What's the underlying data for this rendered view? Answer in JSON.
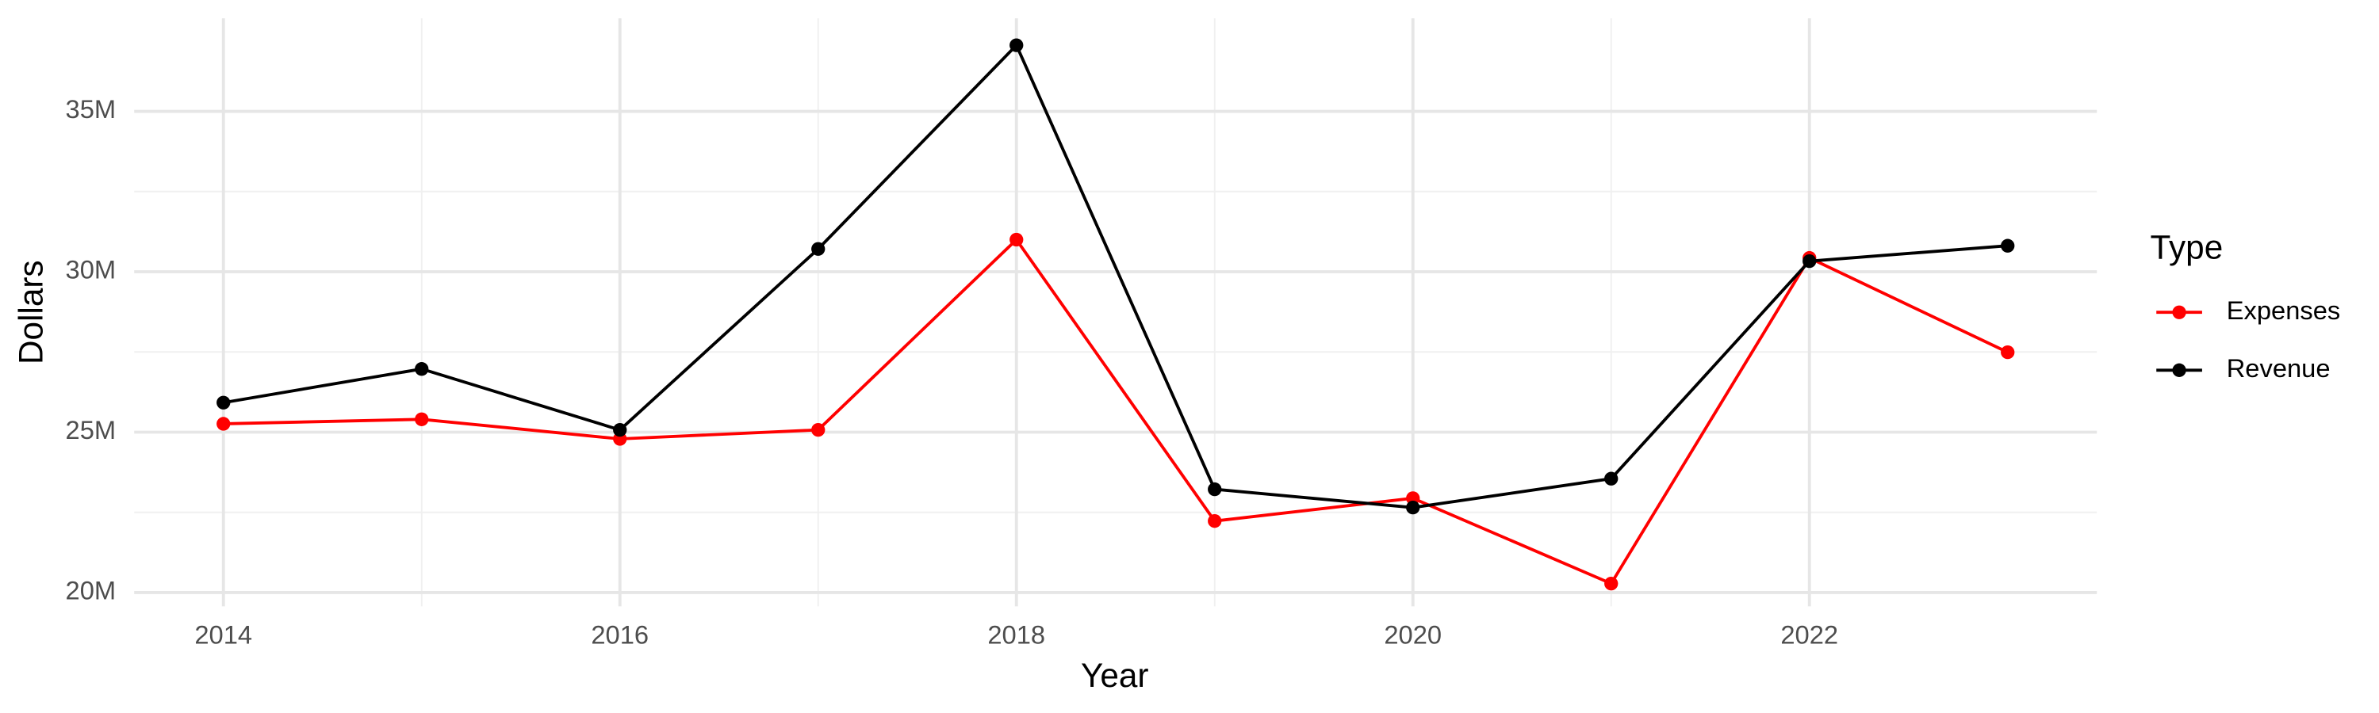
{
  "chart_data": {
    "type": "line",
    "x_label": "Year",
    "y_label": "Dollars",
    "legend_title": "Type",
    "x": [
      2014,
      2015,
      2016,
      2017,
      2018,
      2019,
      2020,
      2021,
      2022,
      2023
    ],
    "series": [
      {
        "name": "Expenses",
        "color": "#ff0000",
        "values": [
          25260000,
          25400000,
          24790000,
          25070000,
          31000000,
          22230000,
          22940000,
          20280000,
          30430000,
          27490000
        ]
      },
      {
        "name": "Revenue",
        "color": "#000000",
        "values": [
          25920000,
          26970000,
          25070000,
          30710000,
          37060000,
          23220000,
          22650000,
          23550000,
          30330000,
          30810000
        ]
      }
    ],
    "xlim": [
      2013.55,
      2023.45
    ],
    "xticks": [
      2014,
      2016,
      2018,
      2020,
      2022
    ],
    "ylim": [
      19570000,
      37900000
    ],
    "yticks": [
      {
        "value": 20000000,
        "label": "20M"
      },
      {
        "value": 25000000,
        "label": "25M"
      },
      {
        "value": 30000000,
        "label": "30M"
      },
      {
        "value": 35000000,
        "label": "35M"
      }
    ],
    "grid": true,
    "legend": "right"
  }
}
